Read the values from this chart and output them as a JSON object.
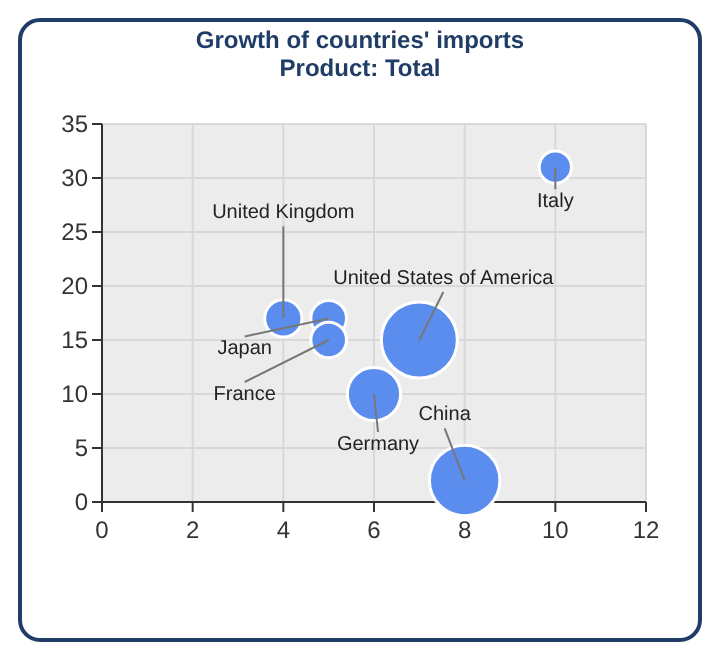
{
  "chart_data": {
    "type": "bubble",
    "title": "Growth of countries' imports",
    "subtitle": "Product: Total",
    "x": [
      4,
      5,
      5,
      7,
      6,
      8,
      10
    ],
    "values": [
      17,
      17,
      15,
      15,
      10,
      2,
      31
    ],
    "sizes": [
      0.24,
      0.22,
      0.22,
      1,
      0.49,
      0.86,
      0.18
    ],
    "color": "#5b8def",
    "xlim": [
      0,
      12
    ],
    "xticks": [
      0,
      2,
      4,
      6,
      8,
      10,
      12
    ],
    "ylim": [
      0,
      35
    ],
    "yticks": [
      0,
      5,
      10,
      15,
      20,
      25,
      30,
      35
    ],
    "grid": true,
    "annotations": [
      {
        "text": "United Kingdom",
        "x": 4,
        "y": 17
      },
      {
        "text": "Japan",
        "x": 5,
        "y": 17
      },
      {
        "text": "France",
        "x": 5,
        "y": 15
      },
      {
        "text": "United States of America",
        "x": 7,
        "y": 15
      },
      {
        "text": "Germany",
        "x": 6,
        "y": 10
      },
      {
        "text": "China",
        "x": 8,
        "y": 2
      },
      {
        "text": "Italy",
        "x": 10,
        "y": 31
      }
    ]
  }
}
